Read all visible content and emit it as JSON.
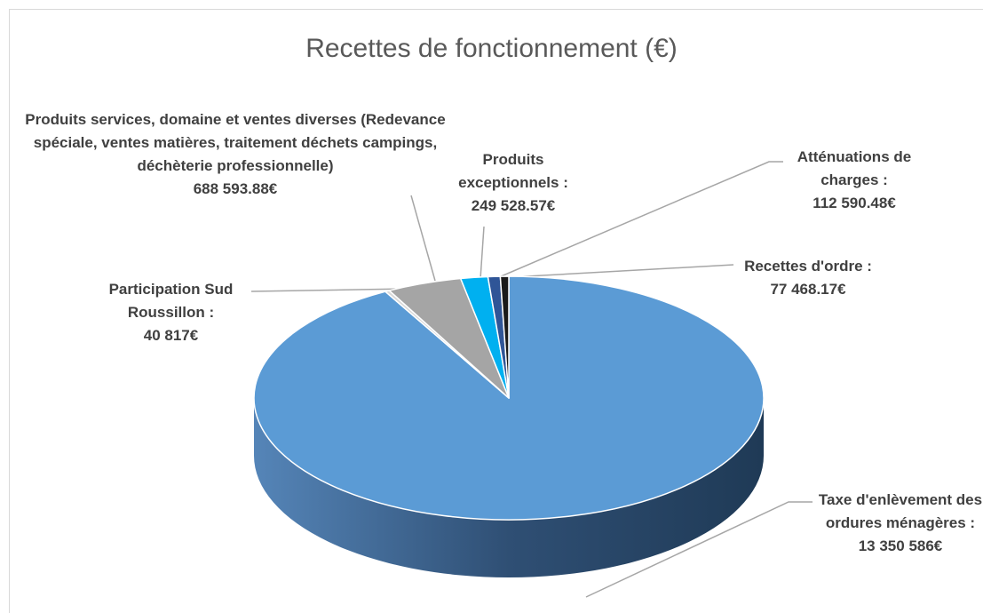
{
  "chart_data": {
    "type": "pie3d",
    "title": "Recettes de fonctionnement (€)",
    "categories": [
      "Taxe d'enlèvement des ordures ménagères :",
      "Participation Sud Roussillon :",
      "Produits services, domaine et ventes diverses (Redevance spéciale, ventes matières, traitement déchets campings, déchèterie professionnelle)",
      "Produits exceptionnels :",
      "Atténuations de charges :",
      "Recettes d'ordre :"
    ],
    "values": [
      13350586,
      40817,
      688593.88,
      249528.57,
      112590.48,
      77468.17
    ],
    "value_labels": [
      "13 350 586€",
      "40 817€",
      "688 593.88€",
      "249 528.57€",
      "112 590.48€",
      "77 468.17€"
    ],
    "colors": [
      "#5b9bd5",
      "#d9d9d9",
      "#a5a5a5",
      "#00b0f0",
      "#2f5597",
      "#1a1a1a"
    ]
  }
}
